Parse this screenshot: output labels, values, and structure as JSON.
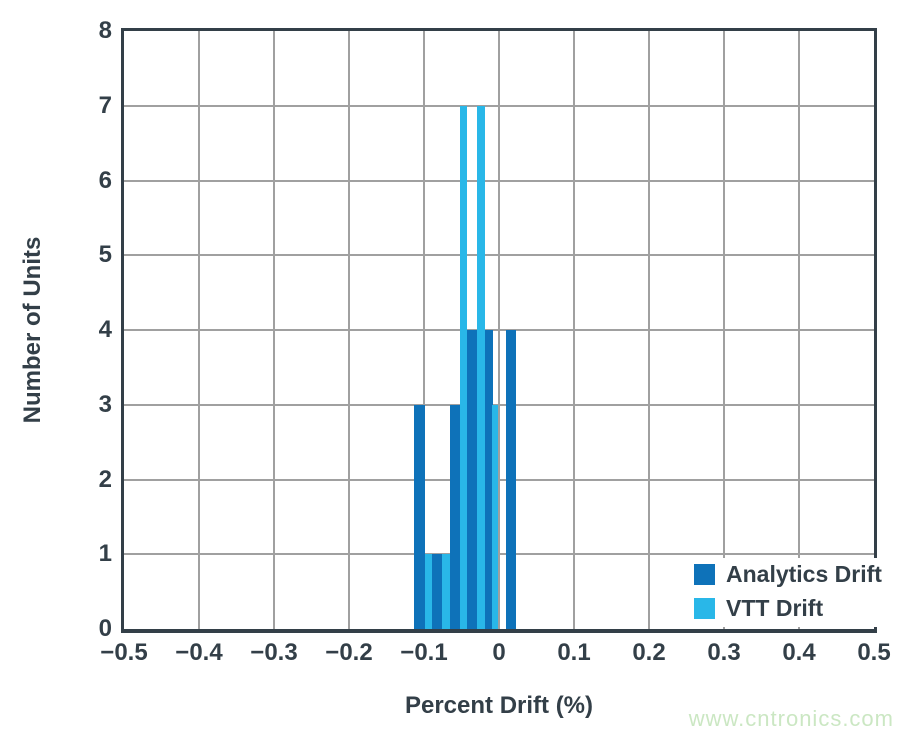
{
  "watermark": "www.cntronics.com",
  "colors": {
    "analytics_drift": "#0e72b9",
    "vtt_drift": "#29b7e8",
    "axis_text": "#333F48",
    "grid": "#a0a0a0",
    "watermark": "#cbe7c3",
    "background": "#ffffff"
  },
  "chart_data": {
    "type": "bar",
    "subtype": "grouped-histogram",
    "title": "",
    "xlabel": "Percent Drift (%)",
    "ylabel": "Number of Units",
    "xlim": [
      -0.5,
      0.5
    ],
    "ylim": [
      0,
      8
    ],
    "grid": true,
    "legend_position": "lower right",
    "xtick_values": [
      -0.5,
      -0.4,
      -0.3,
      -0.2,
      -0.1,
      0,
      0.1,
      0.2,
      0.3,
      0.4,
      0.5
    ],
    "xtick_labels": [
      "−0.5",
      "−0.4",
      "−0.3",
      "−0.2",
      "−0.1",
      "0",
      "0.1",
      "0.2",
      "0.3",
      "0.4",
      "0.5"
    ],
    "ytick_values": [
      0,
      1,
      2,
      3,
      4,
      5,
      6,
      7,
      8
    ],
    "ytick_labels": [
      "0",
      "1",
      "2",
      "3",
      "4",
      "5",
      "6",
      "7",
      "8"
    ],
    "series": [
      {
        "name": "Analytics Drift",
        "color": "#0e72b9",
        "total_units": 19,
        "bars": [
          {
            "x0": -0.113,
            "x1": -0.099,
            "count": 3
          },
          {
            "x0": -0.089,
            "x1": -0.076,
            "count": 1
          },
          {
            "x0": -0.066,
            "x1": -0.0525,
            "count": 3
          },
          {
            "x0": -0.0425,
            "x1": -0.029,
            "count": 4
          },
          {
            "x0": -0.019,
            "x1": -0.0085,
            "count": 4
          },
          {
            "x0": 0.009,
            "x1": 0.022,
            "count": 4
          }
        ]
      },
      {
        "name": "VTT Drift",
        "color": "#29b7e8",
        "total_units": 19,
        "bars": [
          {
            "x0": -0.099,
            "x1": -0.089,
            "count": 1
          },
          {
            "x0": -0.076,
            "x1": -0.066,
            "count": 1
          },
          {
            "x0": -0.0525,
            "x1": -0.0425,
            "count": 7
          },
          {
            "x0": -0.029,
            "x1": -0.019,
            "count": 7
          },
          {
            "x0": -0.009,
            "x1": -0.001,
            "count": 3
          }
        ]
      }
    ]
  }
}
